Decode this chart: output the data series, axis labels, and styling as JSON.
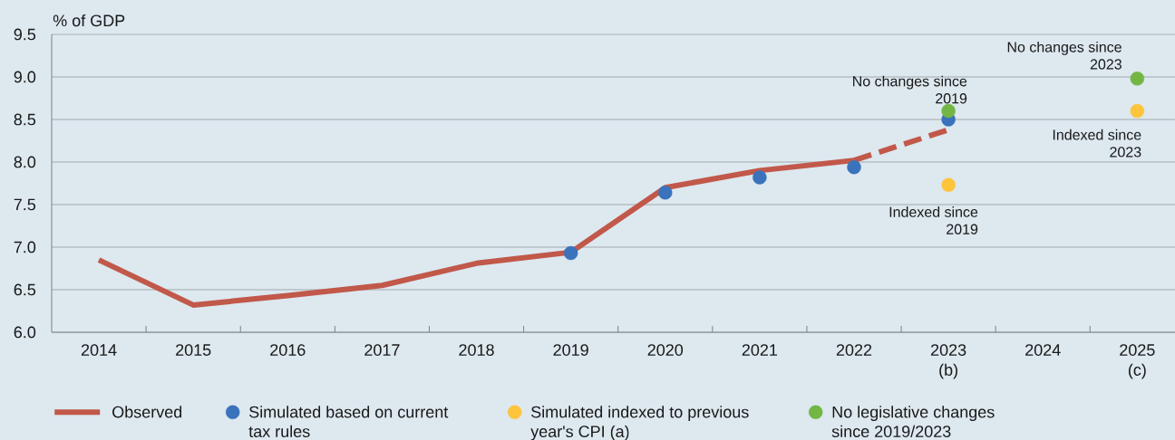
{
  "chart_data": {
    "type": "line",
    "ylabel": "% of GDP",
    "categories": [
      "2014",
      "2015",
      "2016",
      "2017",
      "2018",
      "2019",
      "2020",
      "2021",
      "2022",
      "2023 (b)",
      "2024",
      "2025 (c)"
    ],
    "series": [
      {
        "name": "Observed",
        "color": "#c1584a",
        "line_style": "solid",
        "marker": "none",
        "values": [
          6.85,
          6.32,
          6.43,
          6.55,
          6.81,
          6.94,
          7.7,
          7.9,
          8.02,
          null,
          null,
          null
        ]
      },
      {
        "color": "#c1584a",
        "line_style": "dashed",
        "marker": "none",
        "values": [
          null,
          null,
          null,
          null,
          null,
          null,
          null,
          null,
          8.02,
          8.38,
          null,
          null
        ]
      },
      {
        "name": "Simulated based on current tax rules",
        "type": "scatter",
        "color": "#3a72bc",
        "marker": "circle",
        "values": [
          null,
          null,
          null,
          null,
          null,
          6.93,
          7.64,
          7.82,
          7.94,
          8.5,
          null,
          null
        ]
      },
      {
        "name": "Simulated indexed to previous year's CPI (a)",
        "type": "scatter",
        "color": "#fdc43c",
        "marker": "circle",
        "values": [
          null,
          null,
          null,
          null,
          null,
          null,
          null,
          null,
          null,
          7.73,
          null,
          8.6
        ]
      },
      {
        "name": "No legislative changes since 2019/2023",
        "type": "scatter",
        "color": "#73b644",
        "marker": "circle",
        "values": [
          null,
          null,
          null,
          null,
          null,
          null,
          null,
          null,
          null,
          8.6,
          null,
          8.98
        ]
      }
    ],
    "ylim": [
      6,
      9.5
    ],
    "yticks": [
      {
        "value": 6,
        "label": "6.0"
      },
      {
        "value": 6.5,
        "label": "6.5"
      },
      {
        "value": 7,
        "label": "7.0"
      },
      {
        "value": 7.5,
        "label": "7.5"
      },
      {
        "value": 8,
        "label": "8.0"
      },
      {
        "value": 8.5,
        "label": "8.5"
      },
      {
        "value": 9,
        "label": "9.0"
      },
      {
        "value": 9.5,
        "label": "9.5"
      }
    ],
    "grid": "y",
    "legend": "bottom",
    "annotations": [
      {
        "text": "No changes since 2019",
        "x": "2023 (b)",
        "y": 8.6
      },
      {
        "text": "Indexed since 2019",
        "x": "2023 (b)",
        "y": 7.73
      },
      {
        "text": "No changes since 2023",
        "x": "2025 (c)",
        "y": 8.98
      },
      {
        "text": "Indexed since 2023",
        "x": "2025 (c)",
        "y": 8.6
      }
    ]
  }
}
